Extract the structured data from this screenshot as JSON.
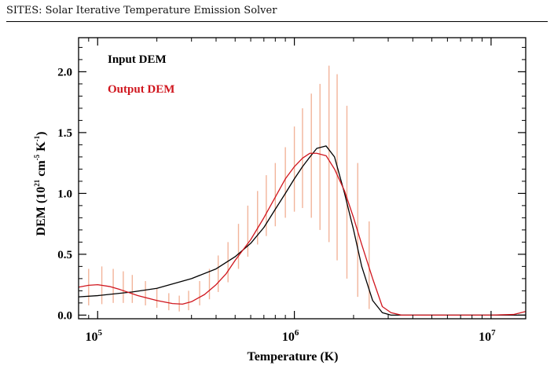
{
  "header": {
    "title": "SITES: Solar Iterative Temperature Emission Solver"
  },
  "chart_data": {
    "type": "line",
    "xlabel": "Temperature (K)",
    "ylabel": "DEM (10^21 cm^-5 K^-1)",
    "ylabel_parts": {
      "main": "DEM (10",
      "exp1": "21",
      "mid": " cm",
      "exp2": "-5",
      "unit": " K",
      "exp3": "-1",
      "close": ")"
    },
    "xscale": "log",
    "xlim": [
      80000,
      15000000
    ],
    "ylim": [
      -0.03,
      2.28
    ],
    "x_ticks": [
      {
        "value": 100000,
        "base": "10",
        "exp": "5"
      },
      {
        "value": 1000000,
        "base": "10",
        "exp": "6"
      },
      {
        "value": 10000000,
        "base": "10",
        "exp": "7"
      }
    ],
    "y_ticks": [
      {
        "value": 0.0,
        "label": "0.0"
      },
      {
        "value": 0.5,
        "label": "0.5"
      },
      {
        "value": 1.0,
        "label": "1.0"
      },
      {
        "value": 1.5,
        "label": "1.5"
      },
      {
        "value": 2.0,
        "label": "2.0"
      }
    ],
    "legend_position": "top-left",
    "series": [
      {
        "name": "Input DEM",
        "color": "#000000",
        "x": [
          80000,
          100000,
          150000,
          200000,
          300000,
          400000,
          500000,
          600000,
          700000,
          800000,
          900000,
          1000000,
          1100000,
          1200000,
          1300000,
          1450000,
          1600000,
          1800000,
          2000000,
          2200000,
          2500000,
          2800000,
          3100000,
          3500000,
          4000000,
          6000000,
          10000000,
          15000000
        ],
        "y": [
          0.15,
          0.16,
          0.19,
          0.22,
          0.3,
          0.38,
          0.48,
          0.59,
          0.72,
          0.87,
          1.0,
          1.12,
          1.22,
          1.3,
          1.37,
          1.39,
          1.3,
          1.0,
          0.7,
          0.4,
          0.12,
          0.02,
          0.0,
          0.0,
          0.0,
          0.0,
          0.0,
          0.0
        ]
      },
      {
        "name": "Output DEM",
        "color": "#d0161e",
        "x": [
          80000,
          90000,
          100000,
          115000,
          130000,
          160000,
          200000,
          240000,
          270000,
          300000,
          350000,
          400000,
          450000,
          500000,
          600000,
          700000,
          800000,
          900000,
          1000000,
          1100000,
          1200000,
          1300000,
          1450000,
          1600000,
          1800000,
          2000000,
          2200000,
          2500000,
          2800000,
          3100000,
          3500000,
          4000000,
          6000000,
          10000000,
          13000000,
          15000000
        ],
        "y": [
          0.23,
          0.245,
          0.25,
          0.235,
          0.21,
          0.16,
          0.12,
          0.095,
          0.09,
          0.11,
          0.17,
          0.25,
          0.34,
          0.45,
          0.62,
          0.8,
          0.97,
          1.12,
          1.22,
          1.29,
          1.33,
          1.33,
          1.31,
          1.2,
          1.02,
          0.8,
          0.58,
          0.3,
          0.07,
          0.02,
          0.0,
          0.0,
          0.0,
          0.0,
          0.005,
          0.03
        ]
      }
    ],
    "error_bars": {
      "color": "#f2b49a",
      "x": [
        90000,
        105000,
        120000,
        135000,
        150000,
        175000,
        200000,
        230000,
        260000,
        290000,
        330000,
        370000,
        410000,
        460000,
        520000,
        580000,
        650000,
        720000,
        800000,
        900000,
        1000000,
        1100000,
        1220000,
        1350000,
        1500000,
        1650000,
        1850000,
        2100000,
        2400000
      ],
      "low": [
        0.08,
        0.09,
        0.1,
        0.1,
        0.1,
        0.08,
        0.06,
        0.04,
        0.03,
        0.04,
        0.08,
        0.13,
        0.19,
        0.27,
        0.38,
        0.48,
        0.58,
        0.65,
        0.73,
        0.8,
        0.85,
        0.88,
        0.8,
        0.7,
        0.6,
        0.45,
        0.3,
        0.15,
        0.05
      ],
      "high": [
        0.38,
        0.4,
        0.38,
        0.36,
        0.33,
        0.28,
        0.22,
        0.18,
        0.16,
        0.2,
        0.28,
        0.38,
        0.49,
        0.6,
        0.75,
        0.9,
        1.02,
        1.15,
        1.25,
        1.38,
        1.55,
        1.7,
        1.82,
        1.9,
        2.05,
        1.98,
        1.72,
        1.25,
        0.77
      ]
    }
  }
}
